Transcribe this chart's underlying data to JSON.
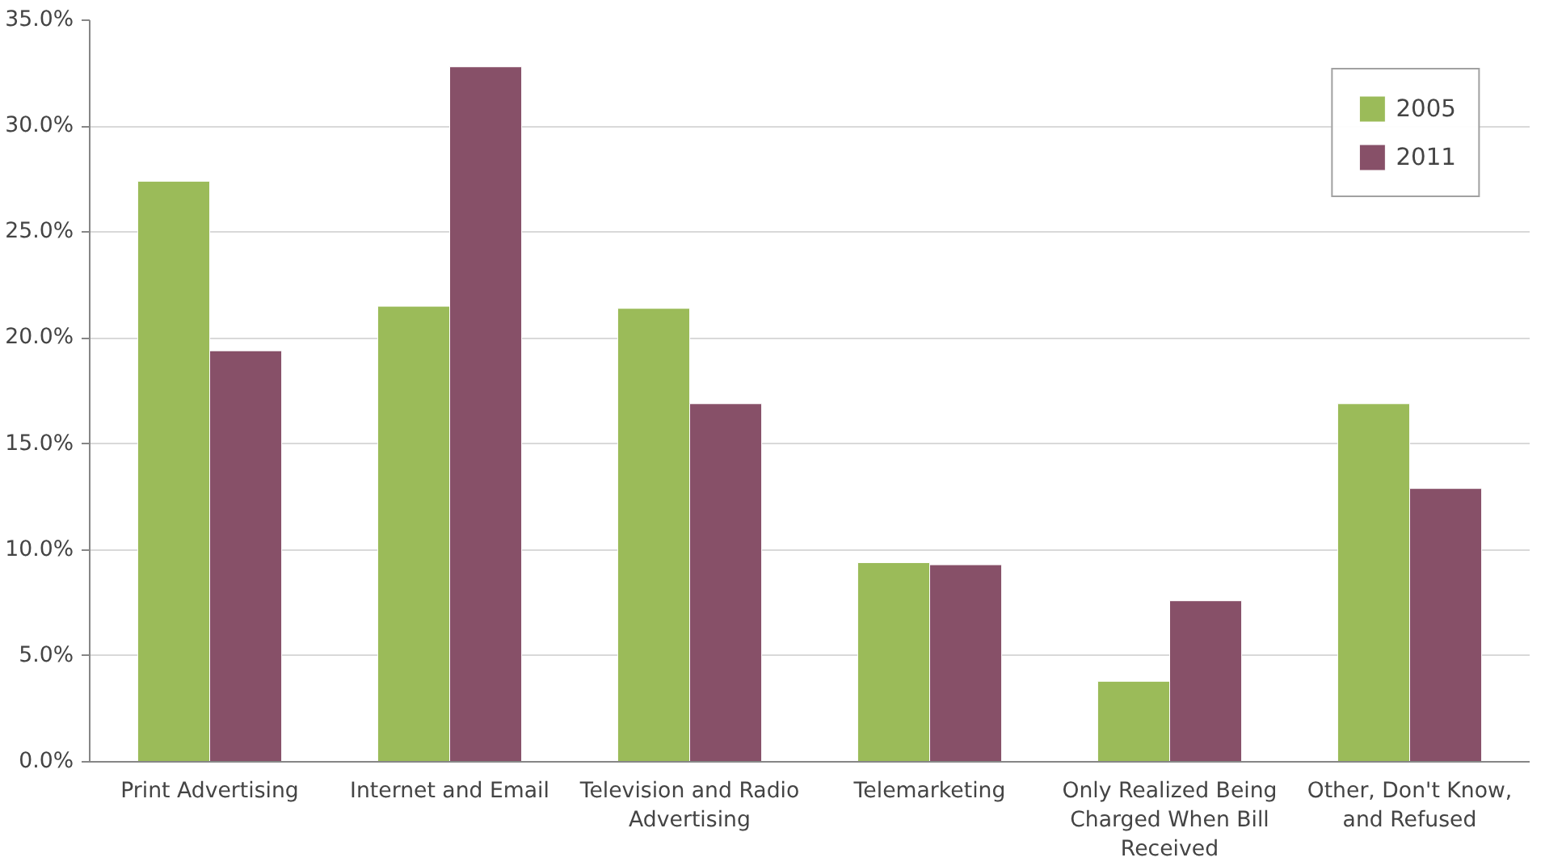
{
  "chart_data": {
    "type": "bar",
    "categories": [
      "Print Advertising",
      "Internet and Email",
      "Television and Radio Advertising",
      "Telemarketing",
      "Only Realized Being Charged When Bill Received",
      "Other, Don't Know, and Refused"
    ],
    "series": [
      {
        "name": "2005",
        "color": "#9bbb59",
        "values": [
          27.4,
          21.5,
          21.4,
          9.4,
          3.8,
          16.9
        ]
      },
      {
        "name": "2011",
        "color": "#875068",
        "values": [
          19.4,
          32.8,
          16.9,
          9.3,
          7.6,
          12.9
        ]
      }
    ],
    "ylim": [
      0,
      35
    ],
    "yticks": [
      {
        "value": 0,
        "label": "0.0%"
      },
      {
        "value": 5,
        "label": "5.0%"
      },
      {
        "value": 10,
        "label": "10.0%"
      },
      {
        "value": 15,
        "label": "15.0%"
      },
      {
        "value": 20,
        "label": "20.0%"
      },
      {
        "value": 25,
        "label": "25.0%"
      },
      {
        "value": 30,
        "label": "30.0%"
      },
      {
        "value": 35,
        "label": "35.0%"
      }
    ],
    "grid": "y",
    "legend": "top right"
  }
}
